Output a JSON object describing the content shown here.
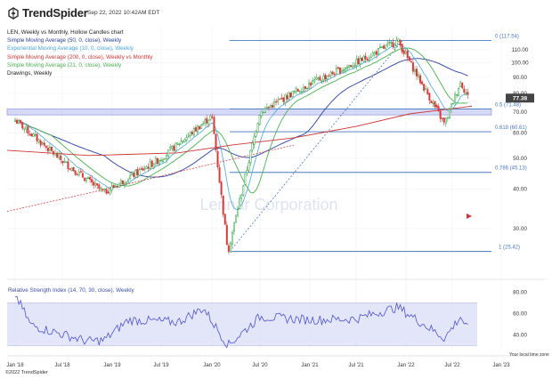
{
  "header": {
    "brand": "TrendSpider",
    "datetime": "Sep 22, 2022 10:42AM EDT"
  },
  "legend": [
    {
      "text": "LEN, Weekly vs Monthly, Hollow Candles chart",
      "color": "#222222"
    },
    {
      "text": "Simple Moving Average (50, 0, close), Weekly",
      "color": "#2a3f9e"
    },
    {
      "text": "Exponential Moving Average (10, 0, close), Weekly",
      "color": "#4aa6d8"
    },
    {
      "text": "Simple Moving Average (200, 0, close), Weekly vs Monthly",
      "color": "#cc3333"
    },
    {
      "text": "Simple Moving Average (21, 0, close), Weekly",
      "color": "#4caf50"
    },
    {
      "text": "Drawings, Weekly",
      "color": "#222222"
    }
  ],
  "watermark": "Lennar Corporation",
  "rsi_title": "Relative Strength Index (14, 70, 30, close), Weekly",
  "timezone_label": "Your local time zone",
  "copyright": "©2022 TrendSpider",
  "colors": {
    "up_candle": "#2e9e3e",
    "down_candle": "#d63a3a",
    "sma50": "#2a3f9e",
    "ema10": "#4aa6d8",
    "sma200": "#cc3333",
    "sma21": "#4caf50",
    "fib_line": "#4a78c2",
    "zone": "#c9cdf3",
    "zone_border": "#7b84d9",
    "rsi_line": "#4f52c9",
    "rsi_band": "#dcdff7"
  },
  "chart_data": [
    {
      "type": "candlestick",
      "title": "LEN, Weekly vs Monthly, Hollow Candles chart",
      "x_tick_labels": [
        "Jan '18",
        "Jul '18",
        "Jan '19",
        "Jul '19",
        "Jan '20",
        "Jul '20",
        "Jan '21",
        "Jul '21",
        "Jan '22",
        "Jul '22",
        "Jan '23"
      ],
      "y_scale": "log",
      "ylim": [
        22,
        125
      ],
      "y_ticks": [
        30,
        40,
        50,
        60,
        70,
        80,
        90,
        100,
        110
      ],
      "y_tick_labels": [
        "30.00",
        "40.00",
        "50.00",
        "60.00",
        "70.00",
        "80.00",
        "90.00",
        "100.00",
        "110.00"
      ],
      "last_price": "77.38",
      "price_path_approx": [
        {
          "x": "Jan '18",
          "y": 66
        },
        {
          "x": "Jul '18",
          "y": 49
        },
        {
          "x": "Dec '18",
          "y": 39
        },
        {
          "x": "Jul '19",
          "y": 50
        },
        {
          "x": "Jan '20",
          "y": 68
        },
        {
          "x": "Mar '20",
          "y": 25.4
        },
        {
          "x": "Jul '20",
          "y": 70
        },
        {
          "x": "Jan '21",
          "y": 86
        },
        {
          "x": "Jul '21",
          "y": 100
        },
        {
          "x": "Dec '21",
          "y": 117.5
        },
        {
          "x": "Jun '22",
          "y": 64
        },
        {
          "x": "Aug '22",
          "y": 87
        },
        {
          "x": "Sep '22",
          "y": 77.38
        }
      ],
      "fibonacci_levels": [
        {
          "label": "0 (117.54)",
          "value": 117.54
        },
        {
          "label": "0.5 (71.48)",
          "value": 71.48
        },
        {
          "label": "0.618 (60.61)",
          "value": 60.61
        },
        {
          "label": "0.786 (45.13)",
          "value": 45.13
        },
        {
          "label": "1 (25.42)",
          "value": 25.42
        }
      ],
      "support_zone": [
        68.5,
        71.5
      ],
      "series": [
        {
          "name": "Simple Moving Average (50, 0, close), Weekly"
        },
        {
          "name": "Exponential Moving Average (10, 0, close), Weekly"
        },
        {
          "name": "Simple Moving Average (200, 0, close), Weekly vs Monthly"
        },
        {
          "name": "Simple Moving Average (21, 0, close), Weekly"
        }
      ]
    },
    {
      "type": "line",
      "title": "Relative Strength Index (14, 70, 30, close), Weekly",
      "ylim": [
        27,
        82
      ],
      "y_ticks": [
        40,
        60,
        80
      ],
      "y_tick_labels": [
        "40.00",
        "60.00",
        "80.00"
      ],
      "band": [
        30,
        70
      ],
      "rsi_path_approx": [
        {
          "x": "Jan '18",
          "y": 78
        },
        {
          "x": "Mar '18",
          "y": 49
        },
        {
          "x": "Oct '18",
          "y": 34
        },
        {
          "x": "Dec '18",
          "y": 35
        },
        {
          "x": "Mar '19",
          "y": 54
        },
        {
          "x": "Sep '19",
          "y": 52
        },
        {
          "x": "Dec '19",
          "y": 65
        },
        {
          "x": "Mar '20",
          "y": 30
        },
        {
          "x": "Jul '20",
          "y": 57
        },
        {
          "x": "Jan '21",
          "y": 54
        },
        {
          "x": "Jul '21",
          "y": 55
        },
        {
          "x": "Dec '21",
          "y": 66
        },
        {
          "x": "Jun '22",
          "y": 37
        },
        {
          "x": "Aug '22",
          "y": 57
        },
        {
          "x": "Sep '22",
          "y": 44
        }
      ]
    }
  ]
}
